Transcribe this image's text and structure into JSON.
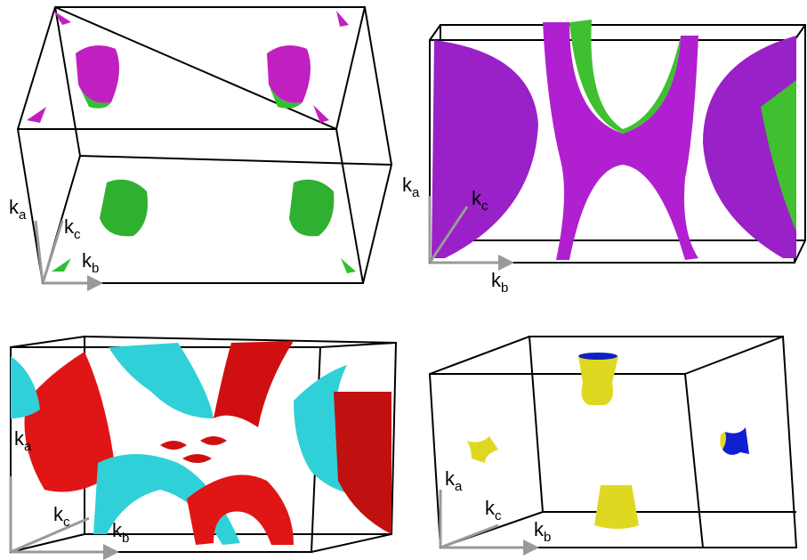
{
  "panels": [
    {
      "axes": [
        {
          "base": "k",
          "sub": "a"
        },
        {
          "base": "k",
          "sub": "c"
        },
        {
          "base": "k",
          "sub": "b"
        }
      ]
    },
    {
      "axes": [
        {
          "base": "k",
          "sub": "a"
        },
        {
          "base": "k",
          "sub": "c"
        },
        {
          "base": "k",
          "sub": "b"
        }
      ]
    },
    {
      "axes": [
        {
          "base": "k",
          "sub": "a"
        },
        {
          "base": "k",
          "sub": "c"
        },
        {
          "base": "k",
          "sub": "b"
        }
      ]
    },
    {
      "axes": [
        {
          "base": "k",
          "sub": "a"
        },
        {
          "base": "k",
          "sub": "c"
        },
        {
          "base": "k",
          "sub": "b"
        }
      ]
    }
  ]
}
